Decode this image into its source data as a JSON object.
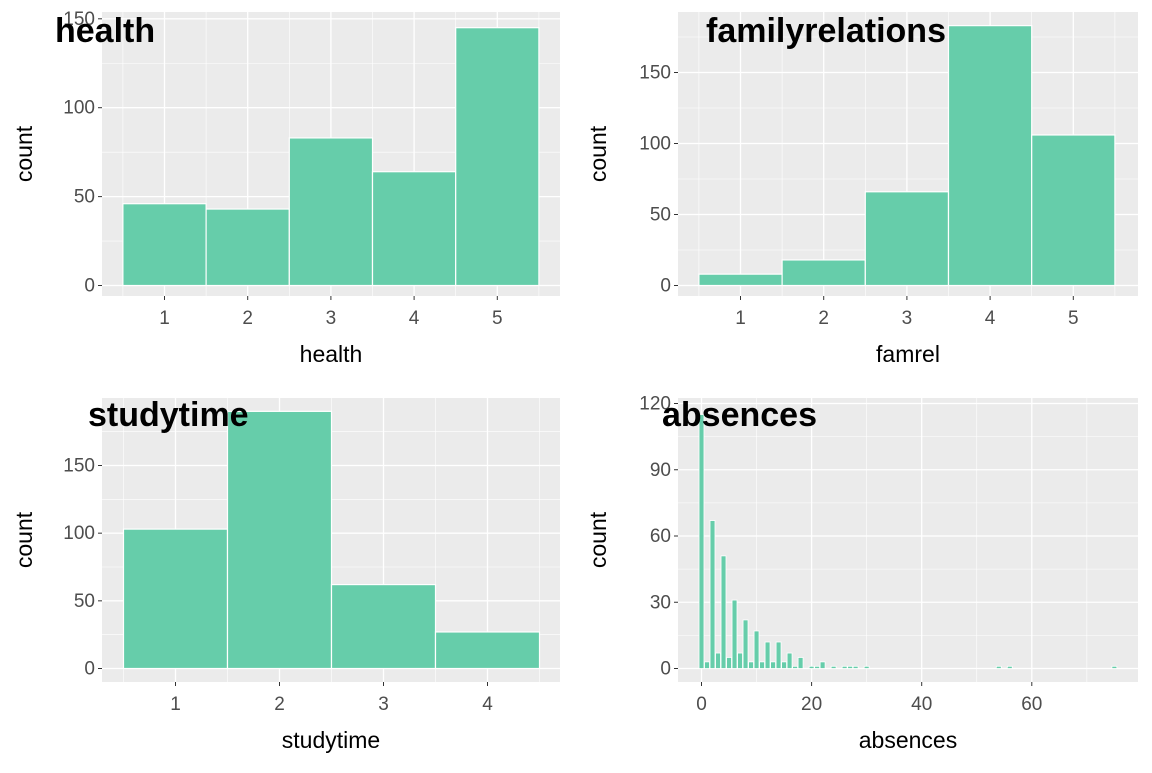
{
  "colors": {
    "panel_bg": "#EBEBEB",
    "grid": "#FFFFFF",
    "bar_fill": "#66CDAA",
    "bar_stroke": "#FFFFFF",
    "tick_text": "#4D4D4D",
    "label_text": "#000000"
  },
  "chart_data": [
    {
      "type": "bar",
      "title": "health",
      "xlabel": "health",
      "ylabel": "count",
      "categories": [
        "1",
        "2",
        "3",
        "4",
        "5"
      ],
      "x": [
        1,
        2,
        3,
        4,
        5
      ],
      "values": [
        46,
        43,
        83,
        64,
        145
      ],
      "xlim": [
        0.5,
        5.5
      ],
      "ylim": [
        0,
        150
      ],
      "xticks": [
        1,
        2,
        3,
        4,
        5
      ],
      "yticks": [
        0,
        50,
        100,
        150
      ],
      "grid": true,
      "legend": "none"
    },
    {
      "type": "bar",
      "title": "familyrelations",
      "xlabel": "famrel",
      "ylabel": "count",
      "categories": [
        "1",
        "2",
        "3",
        "4",
        "5"
      ],
      "x": [
        1,
        2,
        3,
        4,
        5
      ],
      "values": [
        8,
        18,
        66,
        183,
        106
      ],
      "xlim": [
        0.5,
        5.5
      ],
      "ylim": [
        0,
        183
      ],
      "xticks": [
        1,
        2,
        3,
        4,
        5
      ],
      "yticks": [
        0,
        50,
        100,
        150
      ],
      "grid": true,
      "legend": "none"
    },
    {
      "type": "bar",
      "title": "studytime",
      "xlabel": "studytime",
      "ylabel": "count",
      "categories": [
        "1",
        "2",
        "3",
        "4"
      ],
      "x": [
        1,
        2,
        3,
        4
      ],
      "values": [
        103,
        190,
        62,
        27
      ],
      "xlim": [
        0.5,
        4.5
      ],
      "ylim": [
        0,
        190
      ],
      "xticks": [
        1,
        2,
        3,
        4
      ],
      "yticks": [
        0,
        50,
        100,
        150
      ],
      "grid": true,
      "legend": "none"
    },
    {
      "type": "bar",
      "title": "absences",
      "xlabel": "absences",
      "ylabel": "count",
      "x": [
        0,
        1,
        2,
        3,
        4,
        5,
        6,
        7,
        8,
        9,
        10,
        11,
        12,
        13,
        14,
        15,
        16,
        17,
        18,
        19,
        20,
        21,
        22,
        23,
        24,
        25,
        26,
        27,
        28,
        29,
        30,
        54,
        56,
        75
      ],
      "values": [
        115,
        3,
        67,
        7,
        51,
        5,
        31,
        7,
        22,
        3,
        17,
        3,
        12,
        3,
        12,
        3,
        7,
        1,
        5,
        0,
        1,
        1,
        3,
        0,
        1,
        0,
        1,
        1,
        1,
        0,
        1,
        1,
        1,
        1
      ],
      "xlim": [
        -2.5,
        77.5
      ],
      "ylim": [
        0,
        121
      ],
      "xticks": [
        0,
        20,
        40,
        60
      ],
      "yticks": [
        0,
        30,
        60,
        90,
        120
      ],
      "grid": true,
      "legend": "none"
    }
  ]
}
